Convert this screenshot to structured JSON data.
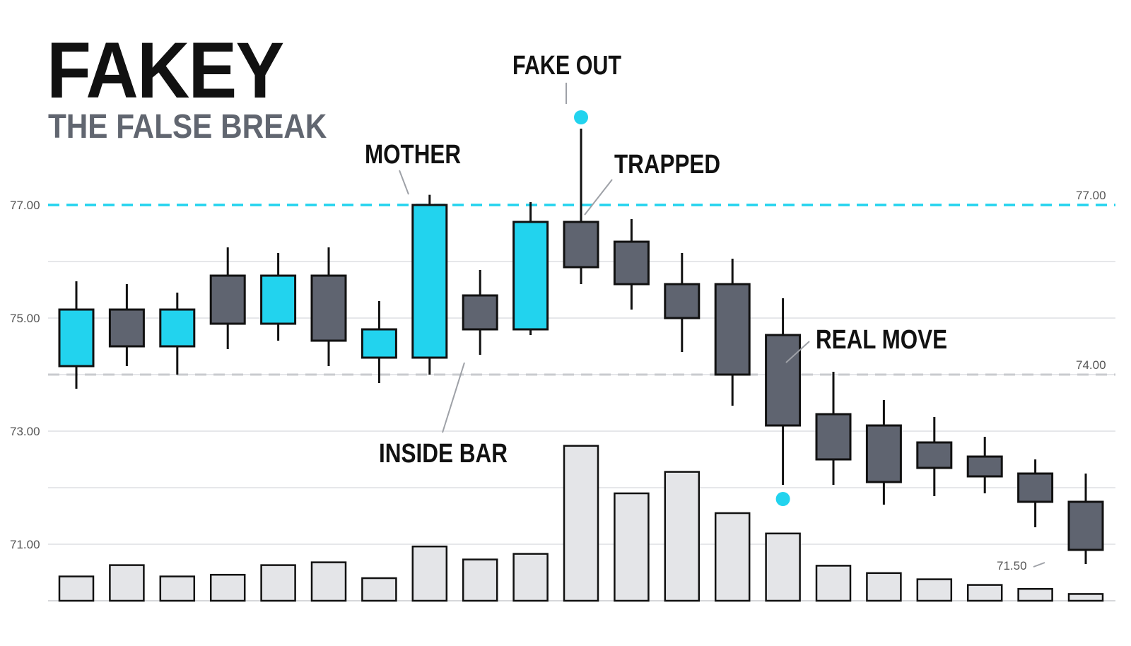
{
  "title": "FAKEY",
  "subtitle": "THE FALSE BREAK",
  "colors": {
    "bull": "#22d3ee",
    "bear": "#5f6470",
    "volume": "#e4e5e8",
    "resistance": "#22d3ee",
    "support": "#c9cbcf",
    "grid": "#e6e7ea",
    "text": "#111111",
    "axis_text": "#555555"
  },
  "chart_data": {
    "type": "candlestick",
    "y_ticks": [
      "77.00",
      "75.00",
      "73.00",
      "71.00"
    ],
    "y_tick_values": [
      77,
      75,
      73,
      71
    ],
    "ylim": [
      70,
      78
    ],
    "grid": true,
    "candles": [
      {
        "open": 74.15,
        "close": 75.15,
        "high": 75.65,
        "low": 73.75
      },
      {
        "open": 75.15,
        "close": 74.5,
        "high": 75.6,
        "low": 74.15
      },
      {
        "open": 74.5,
        "close": 75.15,
        "high": 75.45,
        "low": 74.0
      },
      {
        "open": 75.75,
        "close": 74.9,
        "high": 76.25,
        "low": 74.45
      },
      {
        "open": 74.9,
        "close": 75.75,
        "high": 76.15,
        "low": 74.6
      },
      {
        "open": 75.75,
        "close": 74.6,
        "high": 76.25,
        "low": 74.15
      },
      {
        "open": 74.3,
        "close": 74.8,
        "high": 75.3,
        "low": 73.85
      },
      {
        "open": 74.3,
        "close": 77.0,
        "high": 77.18,
        "low": 74.0
      },
      {
        "open": 75.4,
        "close": 74.8,
        "high": 75.85,
        "low": 74.35
      },
      {
        "open": 74.8,
        "close": 76.7,
        "high": 77.05,
        "low": 74.7
      },
      {
        "open": 76.7,
        "close": 75.9,
        "high": 78.35,
        "low": 75.6
      },
      {
        "open": 76.35,
        "close": 75.6,
        "high": 76.75,
        "low": 75.15
      },
      {
        "open": 75.6,
        "close": 75.0,
        "high": 76.15,
        "low": 74.4
      },
      {
        "open": 75.6,
        "close": 74.0,
        "high": 76.05,
        "low": 73.45
      },
      {
        "open": 74.7,
        "close": 73.1,
        "high": 75.35,
        "low": 72.05
      },
      {
        "open": 73.3,
        "close": 72.5,
        "high": 74.05,
        "low": 72.05
      },
      {
        "open": 73.1,
        "close": 72.1,
        "high": 73.55,
        "low": 71.7
      },
      {
        "open": 72.8,
        "close": 72.35,
        "high": 73.25,
        "low": 71.85
      },
      {
        "open": 72.55,
        "close": 72.2,
        "high": 72.9,
        "low": 71.9
      },
      {
        "open": 72.25,
        "close": 71.75,
        "high": 72.5,
        "low": 71.3
      },
      {
        "open": 71.75,
        "close": 70.9,
        "high": 72.25,
        "low": 70.65
      }
    ],
    "volume": [
      0.43,
      0.63,
      0.43,
      0.46,
      0.63,
      0.68,
      0.4,
      0.96,
      0.73,
      0.83,
      2.74,
      1.9,
      2.28,
      1.55,
      1.19,
      0.62,
      0.49,
      0.38,
      0.28,
      0.21,
      0.12
    ],
    "resistance": {
      "value": 77.0,
      "label": "77.00"
    },
    "support": {
      "value": 74.0,
      "label": "74.00"
    },
    "low_label": {
      "value": 71.5,
      "label": "71.50"
    },
    "markers": [
      {
        "candle": 10,
        "value": 78.55
      },
      {
        "candle": 14,
        "value": 71.8
      }
    ],
    "annotations": [
      {
        "text": "MOTHER",
        "candle": 7
      },
      {
        "text": "INSIDE BAR",
        "candle": 8
      },
      {
        "text": "FAKE OUT",
        "candle": 10
      },
      {
        "text": "TRAPPED",
        "candle": 10
      },
      {
        "text": "REAL MOVE",
        "candle": 14
      }
    ]
  }
}
